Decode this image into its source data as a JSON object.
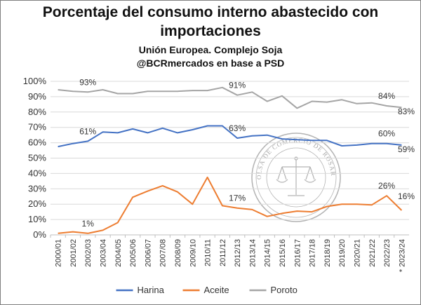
{
  "chart_data": {
    "type": "line",
    "title": "Porcentaje del consumo interno abastecido con importaciones",
    "subtitle": "Unión Europea. Complejo Soja",
    "source": "@BCRmercados en base a PSD",
    "categories": [
      "2000/01",
      "2001/02",
      "2002/03",
      "2003/04",
      "2004/05",
      "2005/06",
      "2006/07",
      "2007/08",
      "2008/09",
      "2009/10",
      "2010/11",
      "2011/12",
      "2012/13",
      "2013/14",
      "2014/15",
      "2015/16",
      "2016/17",
      "2017/18",
      "2018/19",
      "2019/20",
      "2020/21",
      "2021/22",
      "2022/23",
      "* 2023/24"
    ],
    "yticks": [
      "0%",
      "10%",
      "20%",
      "30%",
      "40%",
      "50%",
      "60%",
      "70%",
      "80%",
      "90%",
      "100%"
    ],
    "ylim": [
      0,
      100
    ],
    "grid": true,
    "legend_position": "bottom",
    "series": [
      {
        "name": "Harina",
        "color": "#4472c4",
        "values": [
          57.5,
          59.5,
          61,
          67,
          66.5,
          69,
          66.5,
          69.5,
          66.5,
          68.5,
          71,
          71,
          63,
          64.5,
          65,
          62.5,
          62,
          61.5,
          61.5,
          58,
          58.5,
          59.5,
          59.5,
          58.5
        ]
      },
      {
        "name": "Aceite",
        "color": "#ed7d31",
        "values": [
          1,
          2,
          1,
          3,
          8,
          24.5,
          28.5,
          32,
          28,
          20,
          37.5,
          19,
          17.5,
          16.5,
          12,
          14,
          15.5,
          15,
          18.5,
          20,
          20,
          19.5,
          25.5,
          16
        ]
      },
      {
        "name": "Poroto",
        "color": "#a5a5a5",
        "values": [
          94.5,
          93.5,
          93,
          94.5,
          92,
          92,
          93.5,
          93.5,
          93.5,
          94,
          94,
          96,
          91,
          93,
          87,
          90.5,
          82.5,
          87,
          86.5,
          88,
          85.5,
          86,
          84,
          83
        ]
      }
    ],
    "annotations": [
      {
        "series": 2,
        "index": 2,
        "text": "93%"
      },
      {
        "series": 2,
        "index": 12,
        "text": "91%"
      },
      {
        "series": 2,
        "index": 22,
        "text": "84%"
      },
      {
        "series": 2,
        "index": 23,
        "text": "83%"
      },
      {
        "series": 0,
        "index": 2,
        "text": "61%"
      },
      {
        "series": 0,
        "index": 12,
        "text": "63%"
      },
      {
        "series": 0,
        "index": 22,
        "text": "60%"
      },
      {
        "series": 0,
        "index": 23,
        "text": "59%"
      },
      {
        "series": 1,
        "index": 2,
        "text": "1%"
      },
      {
        "series": 1,
        "index": 12,
        "text": "17%"
      },
      {
        "series": 1,
        "index": 22,
        "text": "26%"
      },
      {
        "series": 1,
        "index": 23,
        "text": "16%"
      }
    ]
  },
  "watermark": {
    "text": "BOLSA DE COMERCIO DE ROSARIO",
    "icon": "scales-of-justice-icon"
  }
}
